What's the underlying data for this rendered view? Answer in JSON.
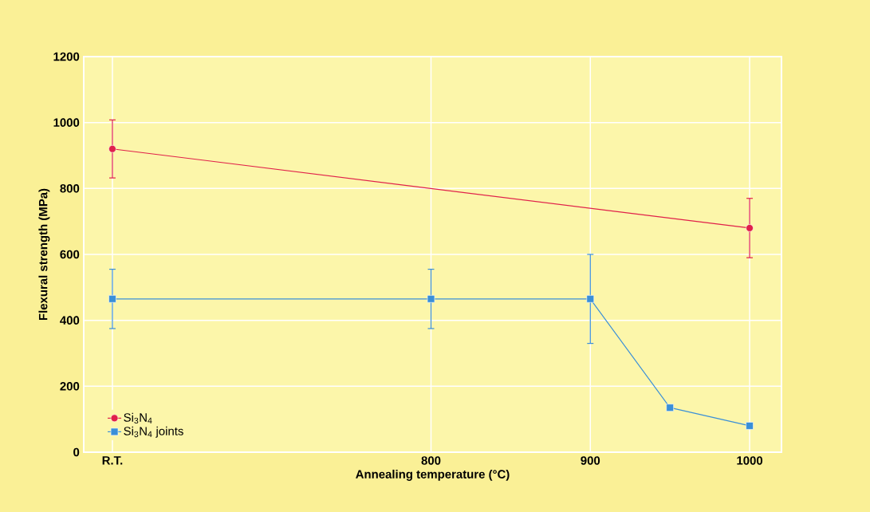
{
  "chart_data": {
    "type": "line",
    "xlabel": "Annealing temperature (°C)",
    "ylabel": "Flexural strength (MPa)",
    "xlim": [
      582,
      1020
    ],
    "ylim": [
      0,
      1200
    ],
    "xticks": [
      {
        "value": 600,
        "label": "R.T."
      },
      800,
      900,
      1000
    ],
    "yticks": [
      0,
      200,
      400,
      600,
      800,
      1000,
      1200
    ],
    "grid": true,
    "legend": "bottom left",
    "series": [
      {
        "name": "Si$_{3}$N$_{4}$",
        "color": "#e0204a",
        "marker": "circle",
        "x": [
          600,
          1000
        ],
        "values": [
          920,
          680
        ],
        "errors": [
          88,
          90
        ]
      },
      {
        "name": "Si$_{3}$N$_{4}$ joints",
        "color": "#3a8fd8",
        "marker": "square",
        "x": [
          600,
          800,
          900,
          950,
          1000
        ],
        "values": [
          465,
          465,
          465,
          135,
          80
        ],
        "errors": [
          90,
          90,
          135,
          null,
          null
        ]
      }
    ]
  }
}
